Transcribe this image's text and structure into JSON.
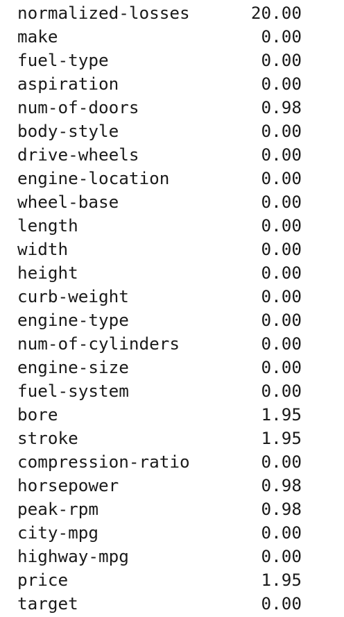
{
  "rows": [
    {
      "name": "normalized-losses",
      "value": "20.00"
    },
    {
      "name": "make",
      "value": "0.00"
    },
    {
      "name": "fuel-type",
      "value": "0.00"
    },
    {
      "name": "aspiration",
      "value": "0.00"
    },
    {
      "name": "num-of-doors",
      "value": "0.98"
    },
    {
      "name": "body-style",
      "value": "0.00"
    },
    {
      "name": "drive-wheels",
      "value": "0.00"
    },
    {
      "name": "engine-location",
      "value": "0.00"
    },
    {
      "name": "wheel-base",
      "value": "0.00"
    },
    {
      "name": "length",
      "value": "0.00"
    },
    {
      "name": "width",
      "value": "0.00"
    },
    {
      "name": "height",
      "value": "0.00"
    },
    {
      "name": "curb-weight",
      "value": "0.00"
    },
    {
      "name": "engine-type",
      "value": "0.00"
    },
    {
      "name": "num-of-cylinders",
      "value": "0.00"
    },
    {
      "name": "engine-size",
      "value": "0.00"
    },
    {
      "name": "fuel-system",
      "value": "0.00"
    },
    {
      "name": "bore",
      "value": "1.95"
    },
    {
      "name": "stroke",
      "value": "1.95"
    },
    {
      "name": "compression-ratio",
      "value": "0.00"
    },
    {
      "name": "horsepower",
      "value": "0.98"
    },
    {
      "name": "peak-rpm",
      "value": "0.98"
    },
    {
      "name": "city-mpg",
      "value": "0.00"
    },
    {
      "name": "highway-mpg",
      "value": "0.00"
    },
    {
      "name": "price",
      "value": "1.95"
    },
    {
      "name": "target",
      "value": "0.00"
    }
  ]
}
